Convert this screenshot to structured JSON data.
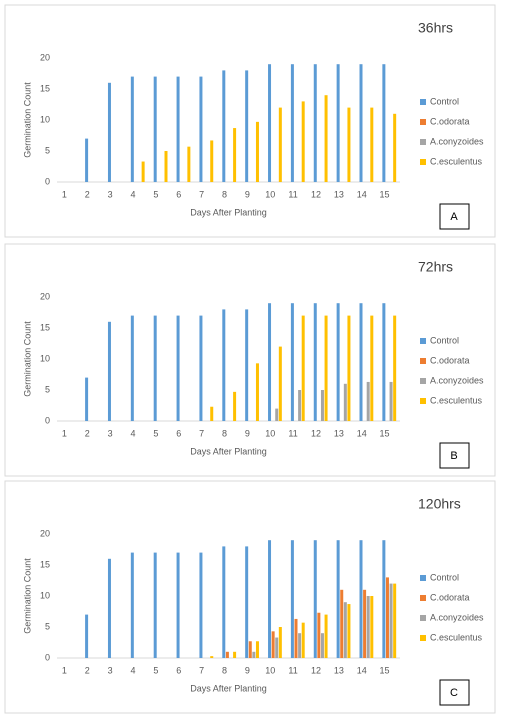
{
  "chart_data": [
    {
      "type": "bar",
      "title": "36hrs",
      "panel_label": "A",
      "x_label": "Days After Planting",
      "y_label": "Germination Count",
      "categories": [
        "1",
        "2",
        "3",
        "4",
        "5",
        "6",
        "7",
        "8",
        "9",
        "10",
        "11",
        "12",
        "13",
        "14",
        "15"
      ],
      "ylim": [
        0,
        20
      ],
      "yticks": [
        0,
        5,
        10,
        15,
        20
      ],
      "grid": false,
      "legend": "right",
      "series": [
        {
          "name": "Control",
          "color": "#5b9bd5",
          "values": [
            0,
            7,
            16,
            17,
            17,
            17,
            17,
            18,
            18,
            19,
            19,
            19,
            19,
            19,
            19
          ]
        },
        {
          "name": "C.odorata",
          "color": "#ed7d31",
          "values": [
            0,
            0,
            0,
            0,
            0,
            0,
            0,
            0,
            0,
            0,
            0,
            0,
            0,
            0,
            0
          ]
        },
        {
          "name": "A.conyzoides",
          "color": "#a5a5a5",
          "values": [
            0,
            0,
            0,
            0,
            0,
            0,
            0,
            0,
            0,
            0,
            0,
            0,
            0,
            0,
            0
          ]
        },
        {
          "name": "C.esculentus",
          "color": "#ffc000",
          "values": [
            0,
            0,
            0,
            3.3,
            5,
            5.7,
            6.7,
            8.7,
            9.7,
            12,
            13,
            14,
            12,
            12,
            11
          ]
        }
      ]
    },
    {
      "type": "bar",
      "title": "72hrs",
      "panel_label": "B",
      "x_label": "Days After Planting",
      "y_label": "Germination Count",
      "categories": [
        "1",
        "2",
        "3",
        "4",
        "5",
        "6",
        "7",
        "8",
        "9",
        "10",
        "11",
        "12",
        "13",
        "14",
        "15"
      ],
      "ylim": [
        0,
        20
      ],
      "yticks": [
        0,
        5,
        10,
        15,
        20
      ],
      "grid": false,
      "legend": "right",
      "series": [
        {
          "name": "Control",
          "color": "#5b9bd5",
          "values": [
            0,
            7,
            16,
            17,
            17,
            17,
            17,
            18,
            18,
            19,
            19,
            19,
            19,
            19,
            19
          ]
        },
        {
          "name": "C.odorata",
          "color": "#ed7d31",
          "values": [
            0,
            0,
            0,
            0,
            0,
            0,
            0,
            0,
            0,
            0,
            0,
            0,
            0,
            0,
            0
          ]
        },
        {
          "name": "A.conyzoides",
          "color": "#a5a5a5",
          "values": [
            0,
            0,
            0,
            0,
            0,
            0,
            0,
            0,
            0,
            2,
            5,
            5,
            6,
            6.3,
            6.3
          ]
        },
        {
          "name": "C.esculentus",
          "color": "#ffc000",
          "values": [
            0,
            0,
            0,
            0,
            0,
            0,
            2.3,
            4.7,
            9.3,
            12,
            17,
            17,
            17,
            17,
            17
          ]
        }
      ]
    },
    {
      "type": "bar",
      "title": "120hrs",
      "panel_label": "C",
      "x_label": "Days After Planting",
      "y_label": "Germination Count",
      "categories": [
        "1",
        "2",
        "3",
        "4",
        "5",
        "6",
        "7",
        "8",
        "9",
        "10",
        "11",
        "12",
        "13",
        "14",
        "15"
      ],
      "ylim": [
        0,
        20
      ],
      "yticks": [
        0,
        5,
        10,
        15,
        20
      ],
      "grid": false,
      "legend": "right",
      "series": [
        {
          "name": "Control",
          "color": "#5b9bd5",
          "values": [
            0,
            7,
            16,
            17,
            17,
            17,
            17,
            18,
            18,
            19,
            19,
            19,
            19,
            19,
            19
          ]
        },
        {
          "name": "C.odorata",
          "color": "#ed7d31",
          "values": [
            0,
            0,
            0,
            0,
            0,
            0,
            0,
            1,
            2.7,
            4.3,
            6.3,
            7.3,
            11,
            11,
            13
          ]
        },
        {
          "name": "A.conyzoides",
          "color": "#a5a5a5",
          "values": [
            0,
            0,
            0,
            0,
            0,
            0,
            0,
            0,
            1,
            3.3,
            4,
            4,
            9,
            10,
            12
          ]
        },
        {
          "name": "C.esculentus",
          "color": "#ffc000",
          "values": [
            0,
            0,
            0,
            0,
            0,
            0,
            0.3,
            1,
            2.7,
            5,
            5.7,
            7,
            8.7,
            10,
            12
          ]
        }
      ]
    }
  ]
}
